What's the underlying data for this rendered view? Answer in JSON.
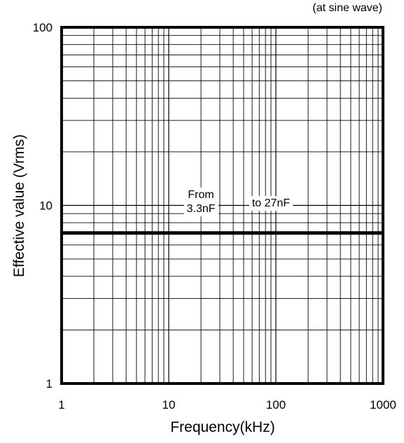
{
  "chart_data": {
    "type": "line",
    "title": "",
    "note": "(at sine wave)",
    "xlabel": "Frequency(kHz)",
    "ylabel": "Effective value (Vrms)",
    "x_scale": "log",
    "y_scale": "log",
    "xlim": [
      1,
      1000
    ],
    "ylim": [
      1,
      100
    ],
    "x_ticks": [
      {
        "value": 1,
        "label": "1"
      },
      {
        "value": 10,
        "label": "10"
      },
      {
        "value": 100,
        "label": "100"
      },
      {
        "value": 1000,
        "label": "1000"
      }
    ],
    "y_ticks": [
      {
        "value": 1,
        "label": "1"
      },
      {
        "value": 10,
        "label": "10"
      },
      {
        "value": 100,
        "label": "100"
      }
    ],
    "grid": true,
    "series": [
      {
        "x": [
          1,
          1000
        ],
        "y": [
          7.0,
          7.0
        ],
        "color": "#000000"
      }
    ],
    "annotations": [
      {
        "lines": [
          "From",
          "3.3nF"
        ],
        "x": 20,
        "y": 10.5
      },
      {
        "lines": [
          "to 27nF"
        ],
        "x": 90,
        "y": 10.3
      }
    ]
  }
}
